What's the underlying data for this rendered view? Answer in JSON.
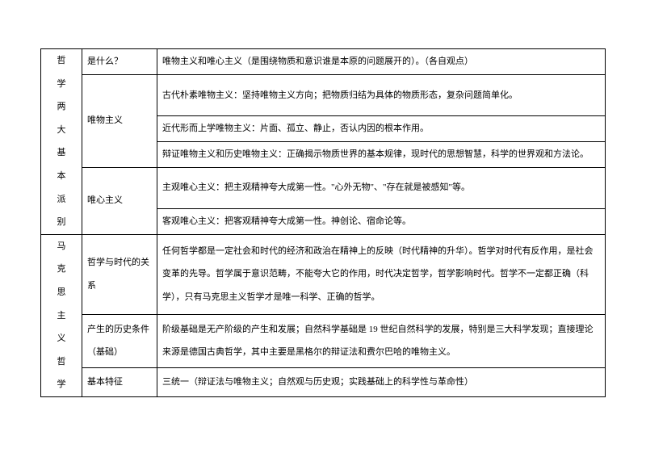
{
  "border_color": "#000000",
  "background_color": "#ffffff",
  "font_size_pt": 11,
  "sections": {
    "s1": {
      "header": "哲学两大基本派别",
      "rows": {
        "r1": {
          "c2": "是什么？",
          "c3": "唯物主义和唯心主义（是围绕物质和意识谁是本原的问题展开的）。（各自观点）"
        },
        "r2": {
          "c2": "唯物主义",
          "c3": "古代朴素唯物主义：坚持唯物主义方向；把物质归结为具体的物质形态，复杂问题简单化。"
        },
        "r3": {
          "c3": "近代形而上学唯物主义：片面、孤立、静止，否认内因的根本作用。"
        },
        "r4": {
          "c3": "辩证唯物主义和历史唯物主义：正确揭示物质世界的基本规律，现时代的思想智慧，科学的世界观和方法论。"
        },
        "r5": {
          "c2": "唯心主义",
          "c3": "主观唯心主义：把主观精神夸大成第一性。\"心外无物\"、\"存在就是被感知\"等。"
        },
        "r6": {
          "c3": "客观唯心主义：把客观精神夸大成第一性。神创论、宿命论等。"
        }
      }
    },
    "s2": {
      "header": "马克思主义哲学",
      "rows": {
        "r1": {
          "c2": "哲学与时代的关系",
          "c3": "任何哲学都是一定社会和时代的经济和政治在精神上的反映（时代精神的升华）。哲学对时代有反作用，是社会变革的先导。哲学属于意识范畴，不能夸大它的作用，时代决定哲学，哲学影响时代。哲学不一定都正确（科学），只有马克思主义哲学才是唯一科学、正确的哲学。"
        },
        "r2": {
          "c2": "产生的历史条件（基础）",
          "c3": "阶级基础是无产阶级的产生和发展；自然科学基础是 19 世纪自然科学的发展，特别是三大科学发现；直接理论来源是德国古典哲学，其中主要是黑格尔的辩证法和费尔巴哈的唯物主义。"
        },
        "r3": {
          "c2": "基本特征",
          "c3": "三统一（辩证法与唯物主义；自然观与历史观；实践基础上的科学性与革命性）"
        }
      }
    }
  }
}
